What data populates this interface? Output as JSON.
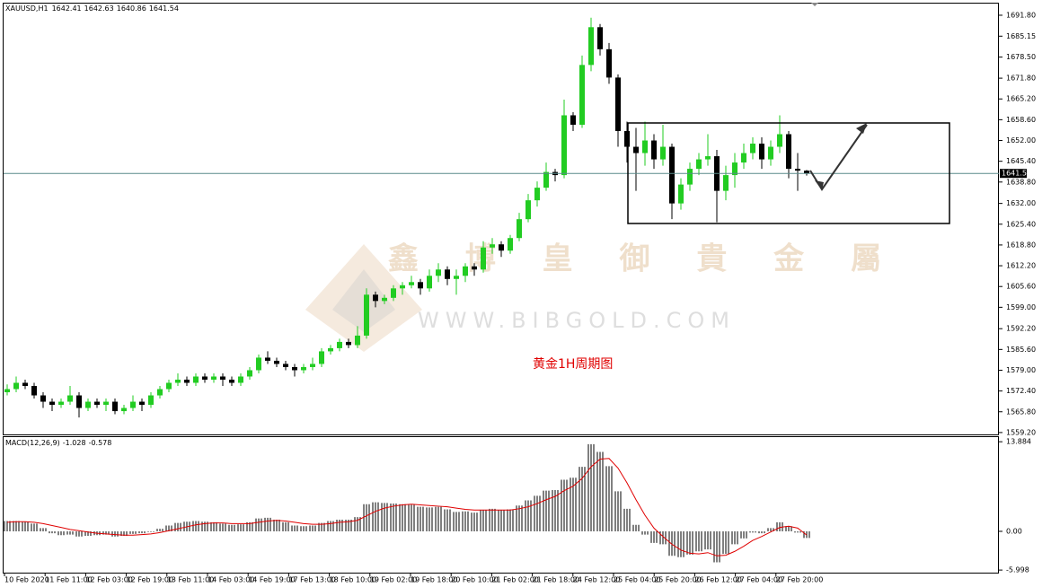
{
  "chart_data": [
    {
      "type": "candlestick",
      "symbol": "XAUUSD,H1",
      "annotation": "黄金1H周期图",
      "watermark": {
        "name": "鑫 博 皇 御 貴 金 屬",
        "site": "WWW.BIBGOLD.COM"
      },
      "up_color": "#22cc22",
      "down_color": "#000000",
      "open": [
        1572,
        1573,
        1575,
        1574,
        1571,
        1569,
        1568,
        1569,
        1571,
        1567,
        1569,
        1568,
        1569,
        1566,
        1567,
        1569,
        1568,
        1571,
        1573,
        1575,
        1576,
        1575,
        1577,
        1576,
        1577,
        1576,
        1575,
        1577,
        1579,
        1583,
        1582,
        1581,
        1580,
        1579,
        1580,
        1581,
        1585,
        1586,
        1588,
        1587,
        1590,
        1603,
        1601,
        1602,
        1605,
        1606,
        1607,
        1605,
        1609,
        1611,
        1608,
        1609,
        1612,
        1611,
        1618,
        1619,
        1617,
        1621,
        1627,
        1633,
        1637,
        1642,
        1641,
        1660,
        1657,
        1676,
        1688,
        1681,
        1672,
        1655,
        1650,
        1648,
        1652,
        1646,
        1650,
        1632,
        1638,
        1643,
        1646,
        1647,
        1636,
        1641,
        1645,
        1648,
        1651,
        1646,
        1650,
        1654,
        1643,
        1642.41
      ],
      "high": [
        1574.5,
        1577,
        1576,
        1575,
        1572,
        1570,
        1570,
        1574,
        1572,
        1570,
        1570,
        1570,
        1570,
        1568,
        1571,
        1570,
        1572,
        1574,
        1576,
        1578,
        1577,
        1578,
        1578,
        1578,
        1578,
        1577,
        1578,
        1580,
        1584,
        1585,
        1583,
        1582,
        1581,
        1581,
        1583,
        1586,
        1587,
        1589,
        1589,
        1593,
        1605,
        1604,
        1603,
        1606,
        1607,
        1609,
        1608,
        1611,
        1613,
        1612,
        1611,
        1613,
        1613,
        1620,
        1621,
        1620,
        1622,
        1629,
        1635,
        1639,
        1645,
        1643,
        1665,
        1661,
        1679,
        1691,
        1689,
        1683,
        1673,
        1658,
        1656,
        1658,
        1654,
        1657,
        1651,
        1640,
        1645,
        1648,
        1654,
        1649,
        1644,
        1648,
        1651,
        1653,
        1653,
        1652,
        1660,
        1655,
        1648,
        1642.63
      ],
      "low": [
        1571,
        1572,
        1573,
        1570,
        1567,
        1566,
        1567,
        1568,
        1564,
        1566,
        1567,
        1566,
        1565,
        1565,
        1566,
        1566,
        1567,
        1570,
        1572,
        1574,
        1574,
        1574,
        1575,
        1575,
        1574,
        1574,
        1574,
        1576,
        1578,
        1581,
        1580,
        1579,
        1577,
        1578,
        1579,
        1580,
        1584,
        1585,
        1586,
        1586,
        1589,
        1599,
        1600,
        1601,
        1603,
        1605,
        1603,
        1604,
        1607,
        1606,
        1603,
        1607,
        1609,
        1610,
        1616,
        1615,
        1616,
        1620,
        1626,
        1631,
        1636,
        1639,
        1640,
        1655,
        1656,
        1674,
        1679,
        1670,
        1650,
        1645,
        1636,
        1644,
        1643,
        1644,
        1627,
        1630,
        1636,
        1641,
        1644,
        1626,
        1633,
        1637,
        1643,
        1646,
        1643,
        1644,
        1648,
        1640,
        1636,
        1640.86
      ],
      "close": [
        1573,
        1575,
        1574,
        1571,
        1569,
        1568,
        1569,
        1571,
        1567,
        1569,
        1568,
        1569,
        1566,
        1567,
        1569,
        1568,
        1571,
        1573,
        1575,
        1576,
        1575,
        1577,
        1576,
        1577,
        1576,
        1575,
        1577,
        1579,
        1583,
        1582,
        1581,
        1580,
        1579,
        1580,
        1581,
        1585,
        1586,
        1588,
        1587,
        1590,
        1603,
        1601,
        1602,
        1605,
        1606,
        1607,
        1605,
        1609,
        1611,
        1608,
        1609,
        1612,
        1611,
        1618,
        1619,
        1617,
        1621,
        1627,
        1633,
        1637,
        1642,
        1641,
        1660,
        1657,
        1676,
        1688,
        1681,
        1672,
        1655,
        1650,
        1648,
        1652,
        1646,
        1650,
        1632,
        1638,
        1643,
        1646,
        1647,
        1636,
        1641,
        1645,
        1648,
        1651,
        1646,
        1650,
        1654,
        1643,
        1642.41,
        1641.54
      ],
      "ylim": [
        1558.6,
        1695.5
      ],
      "yticks": [
        {
          "value": 1691.8,
          "label": "1691.80"
        },
        {
          "value": 1685.15,
          "label": "1685.15"
        },
        {
          "value": 1678.5,
          "label": "1678.50"
        },
        {
          "value": 1671.8,
          "label": "1671.80"
        },
        {
          "value": 1665.2,
          "label": "1665.20"
        },
        {
          "value": 1658.6,
          "label": "1658.60"
        },
        {
          "value": 1652,
          "label": "1652.00"
        },
        {
          "value": 1645.4,
          "label": "1645.40"
        },
        {
          "value": 1638.8,
          "label": "1638.80"
        },
        {
          "value": 1632,
          "label": "1632.00"
        },
        {
          "value": 1625.4,
          "label": "1625.40"
        },
        {
          "value": 1618.8,
          "label": "1618.80"
        },
        {
          "value": 1612.2,
          "label": "1612.20"
        },
        {
          "value": 1605.6,
          "label": "1605.60"
        },
        {
          "value": 1599,
          "label": "1599.00"
        },
        {
          "value": 1592.2,
          "label": "1592.20"
        },
        {
          "value": 1585.6,
          "label": "1585.60"
        },
        {
          "value": 1579,
          "label": "1579.00"
        },
        {
          "value": 1572.4,
          "label": "1572.40"
        },
        {
          "value": 1565.8,
          "label": "1565.80"
        },
        {
          "value": 1559.2,
          "label": "1559.20"
        }
      ]
    },
    {
      "type": "macd",
      "label": "MACD(12,26,9)",
      "series": [
        {
          "color": "#000000",
          "values": [
            1.6,
            1.6,
            1.5,
            1.2,
            0.5,
            -0.3,
            -0.6,
            -0.5,
            -0.8,
            -0.7,
            -0.6,
            -0.5,
            -0.8,
            -0.7,
            -0.4,
            -0.3,
            -0.1,
            0.4,
            0.9,
            1.3,
            1.5,
            1.6,
            1.5,
            1.4,
            1.2,
            1.0,
            1.1,
            1.4,
            2.0,
            2.1,
            1.8,
            1.4,
            0.9,
            0.8,
            0.9,
            1.3,
            1.6,
            1.8,
            1.8,
            2.2,
            4.2,
            4.5,
            4.4,
            4.3,
            4.2,
            4.1,
            3.8,
            3.7,
            3.8,
            3.4,
            3.0,
            3.1,
            2.9,
            3.3,
            3.5,
            3.3,
            3.4,
            4.0,
            4.8,
            5.5,
            6.3,
            6.4,
            8.0,
            8.3,
            10.0,
            13.5,
            12.3,
            10.1,
            6.2,
            3.5,
            1.0,
            -0.5,
            -1.8,
            -2.0,
            -3.8,
            -4.0,
            -3.6,
            -3.1,
            -2.8,
            -4.8,
            -3.5,
            -2.0,
            -1.1,
            -0.2,
            -0.3,
            0.5,
            1.4,
            0.8,
            -0.2,
            -1.028
          ]
        },
        {
          "color": "#e00000",
          "values": [
            1.4,
            1.5,
            1.5,
            1.4,
            1.2,
            0.9,
            0.6,
            0.3,
            0.1,
            -0.1,
            -0.3,
            -0.4,
            -0.5,
            -0.6,
            -0.6,
            -0.5,
            -0.4,
            -0.2,
            0.1,
            0.4,
            0.7,
            1.0,
            1.2,
            1.3,
            1.3,
            1.2,
            1.2,
            1.2,
            1.4,
            1.6,
            1.7,
            1.6,
            1.4,
            1.2,
            1.1,
            1.1,
            1.2,
            1.4,
            1.5,
            1.7,
            2.4,
            3.1,
            3.6,
            3.9,
            4.1,
            4.2,
            4.1,
            4.0,
            3.9,
            3.8,
            3.6,
            3.4,
            3.3,
            3.3,
            3.3,
            3.3,
            3.3,
            3.5,
            3.8,
            4.3,
            4.9,
            5.4,
            6.3,
            7.0,
            8.2,
            10.0,
            11.2,
            11.3,
            9.8,
            7.5,
            4.9,
            2.5,
            0.5,
            -0.8,
            -2.0,
            -2.9,
            -3.4,
            -3.5,
            -3.3,
            -3.8,
            -3.7,
            -3.1,
            -2.3,
            -1.4,
            -0.8,
            -0.1,
            0.6,
            0.8,
            0.5,
            -0.578
          ]
        }
      ],
      "ylim": [
        -6.4,
        14.6
      ],
      "yticks": [
        13.884,
        {
          "value": 0,
          "label": "0.00"
        },
        -5.998
      ],
      "xtick_labels": [
        "10 Feb 2020",
        "11 Feb 11:00",
        "12 Feb 03:00",
        "12 Feb 19:00",
        "13 Feb 11:00",
        "14 Feb 03:00",
        "14 Feb 19:00",
        "17 Feb 13:00",
        "18 Feb 10:00",
        "19 Feb 02:00",
        "19 Feb 18:00",
        "20 Feb 10:00",
        "21 Feb 02:00",
        "21 Feb 18:00",
        "24 Feb 12:00",
        "25 Feb 04:00",
        "25 Feb 20:00",
        "26 Feb 12:00",
        "27 Feb 04:00",
        "27 Feb 20:00"
      ]
    }
  ]
}
